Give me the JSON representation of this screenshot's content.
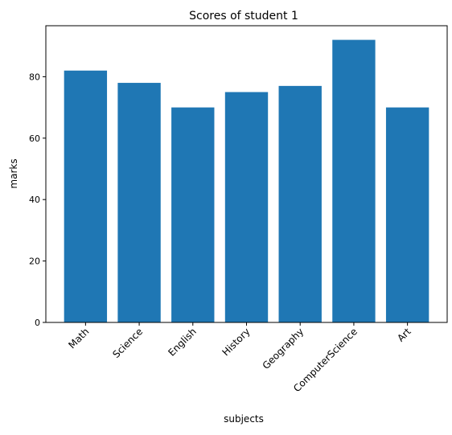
{
  "chart_data": {
    "type": "bar",
    "title": "Scores of student 1",
    "xlabel": "subjects",
    "ylabel": "marks",
    "categories": [
      "Math",
      "Science",
      "English",
      "History",
      "Geography",
      "ComputerScience",
      "Art"
    ],
    "values": [
      82,
      78,
      70,
      75,
      77,
      92,
      70
    ],
    "ylim": [
      0,
      96.6
    ],
    "yticks": [
      0,
      20,
      40,
      60,
      80
    ],
    "grid": false,
    "bar_color": "#1f77b4",
    "xtick_rotation_deg": 45
  }
}
